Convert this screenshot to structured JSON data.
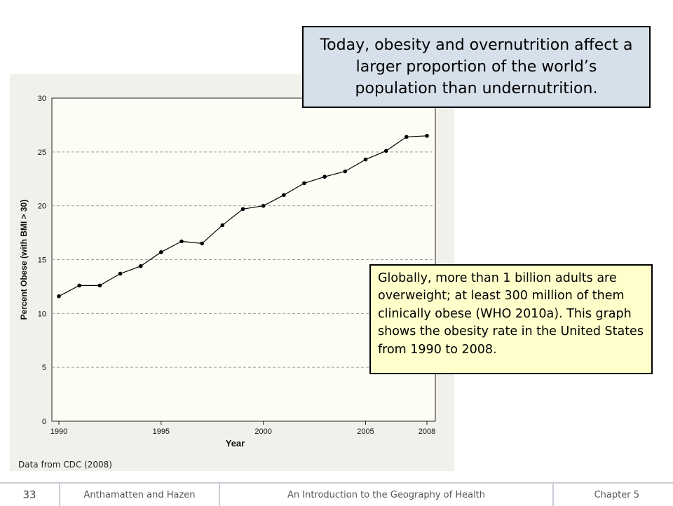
{
  "slide": {
    "callout_top": "Today, obesity and overnutrition affect a larger proportion of the world’s population than undernutrition.",
    "callout_bottom": "Globally, more than 1 billion adults are overweight; at least 300 million of them clinically obese (WHO 2010a). This graph shows the obesity rate in the United States from 1990 to 2008.",
    "source_note": "Data from CDC (2008)",
    "footer": {
      "page_number": "33",
      "authors": "Anthamatten and Hazen",
      "book_title": "An Introduction to the Geography of Health",
      "chapter": "Chapter 5"
    }
  },
  "chart_data": {
    "type": "line",
    "xlabel": "Year",
    "ylabel": "Percent Obese (with BMI > 30)",
    "x": [
      1990,
      1991,
      1992,
      1993,
      1994,
      1995,
      1996,
      1997,
      1998,
      1999,
      2000,
      2001,
      2002,
      2003,
      2004,
      2005,
      2006,
      2007,
      2008
    ],
    "values": [
      11.6,
      12.6,
      12.6,
      13.7,
      14.4,
      15.7,
      16.7,
      16.5,
      18.2,
      19.7,
      20.0,
      21.0,
      22.1,
      22.7,
      23.2,
      24.3,
      25.1,
      26.4,
      26.5
    ],
    "xticks": [
      "1990",
      "1995",
      "2000",
      "2005",
      "2008"
    ],
    "xtick_values": [
      1990,
      1995,
      2000,
      2005,
      2008
    ],
    "yticks": [
      "0",
      "5",
      "10",
      "15",
      "20",
      "25",
      "30"
    ],
    "ytick_values": [
      0,
      5,
      10,
      15,
      20,
      25,
      30
    ],
    "ylim": [
      0,
      30
    ],
    "xlim": [
      1990,
      2008
    ],
    "grid": "horizontal dashed",
    "colors": {
      "plot_background": "#fdfdf5",
      "panel_background": "#f2f0eb",
      "line": "#000000",
      "grid": "#9a9a9a"
    }
  }
}
